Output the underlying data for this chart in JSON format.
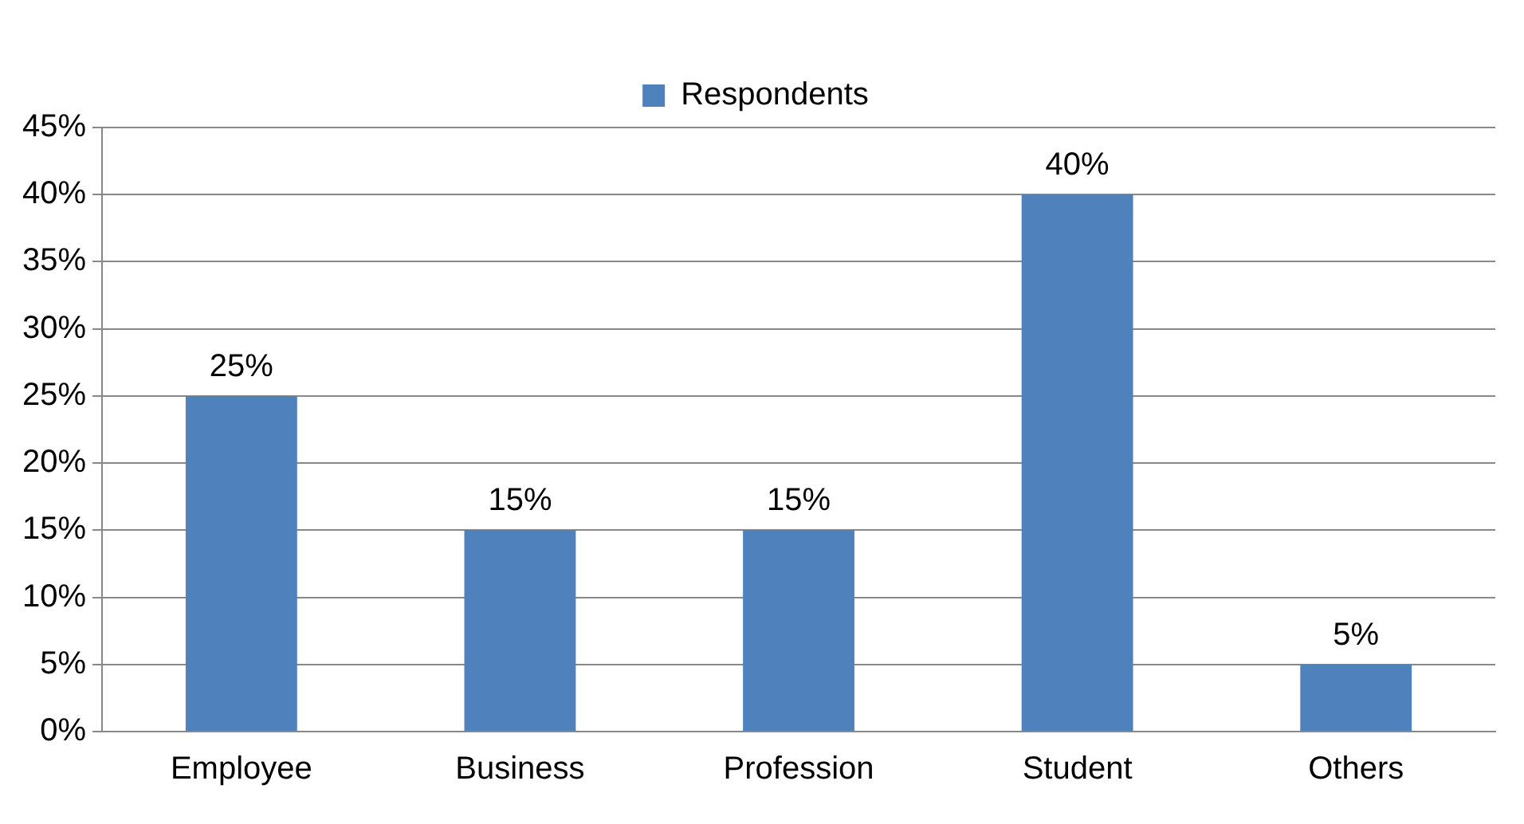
{
  "chart_data": {
    "type": "bar",
    "categories": [
      "Employee",
      "Business",
      "Profession",
      "Student",
      "Others"
    ],
    "series": [
      {
        "name": "Respondents",
        "color": "#4f81bd",
        "values": [
          25,
          15,
          15,
          40,
          5
        ],
        "value_labels": [
          "25%",
          "15%",
          "15%",
          "40%",
          "5%"
        ]
      }
    ],
    "ylim": [
      0,
      45
    ],
    "yticks": [
      {
        "value": 0,
        "label": "0%"
      },
      {
        "value": 5,
        "label": "5%"
      },
      {
        "value": 10,
        "label": "10%"
      },
      {
        "value": 15,
        "label": "15%"
      },
      {
        "value": 20,
        "label": "20%"
      },
      {
        "value": 25,
        "label": "25%"
      },
      {
        "value": 30,
        "label": "30%"
      },
      {
        "value": 35,
        "label": "35%"
      },
      {
        "value": 40,
        "label": "40%"
      },
      {
        "value": 45,
        "label": "45%"
      }
    ],
    "grid": "y",
    "legend": "top"
  }
}
